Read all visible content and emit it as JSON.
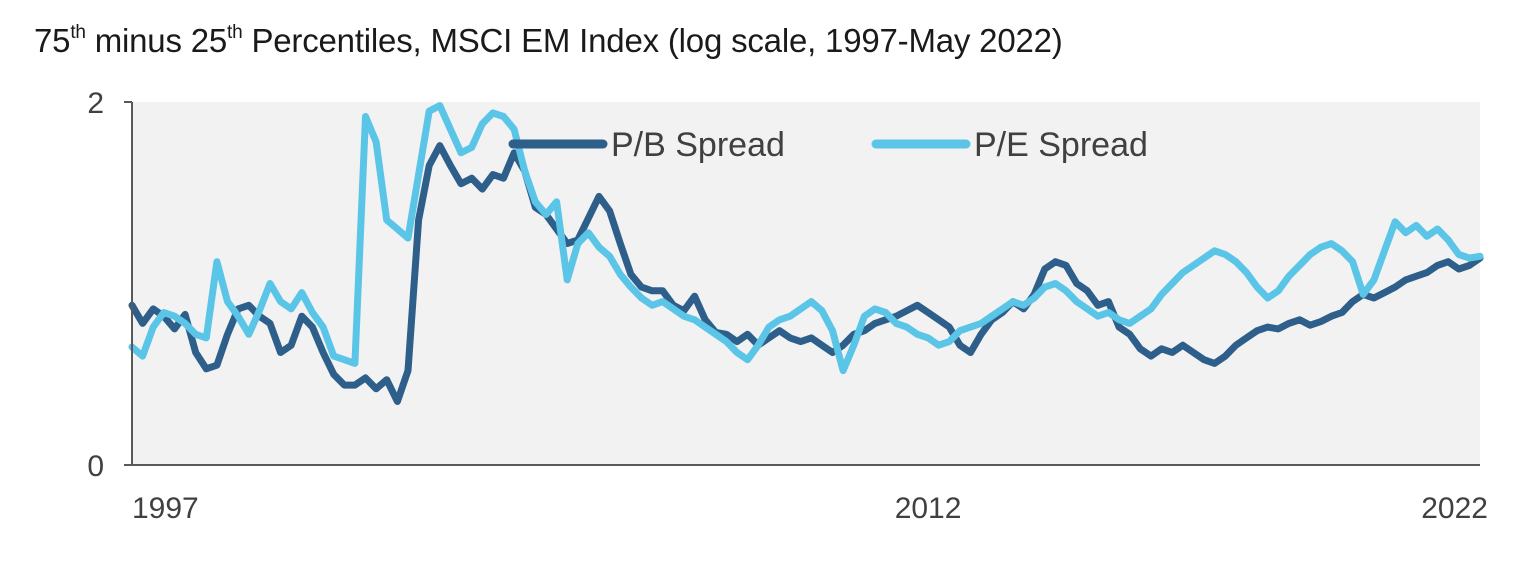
{
  "title": {
    "part1": "75",
    "sup1": "th",
    "part2": " minus 25",
    "sup2": "th",
    "part3": " Percentiles, MSCI EM Index (log scale, 1997-May 2022)"
  },
  "chart_data": {
    "type": "line",
    "title": "75th minus 25th Percentiles, MSCI EM Index (log scale, 1997-May 2022)",
    "xlabel": "",
    "ylabel": "",
    "xlim": [
      1997.0,
      2022.4
    ],
    "ylim": [
      0,
      2
    ],
    "x_ticks": [
      {
        "value": 1997,
        "label": "1997"
      },
      {
        "value": 2012,
        "label": "2012"
      },
      {
        "value": 2022.4,
        "label": "2022"
      }
    ],
    "y_ticks": [
      {
        "value": 0,
        "label": "0"
      },
      {
        "value": 2,
        "label": "2"
      }
    ],
    "grid": false,
    "legend_position": "top-center",
    "series": [
      {
        "name": "P/B Spread",
        "color": "#2e5f8a",
        "points": [
          [
            1997.0,
            0.88
          ],
          [
            1997.2,
            0.78
          ],
          [
            1997.4,
            0.86
          ],
          [
            1997.6,
            0.82
          ],
          [
            1997.8,
            0.75
          ],
          [
            1998.0,
            0.83
          ],
          [
            1998.2,
            0.62
          ],
          [
            1998.4,
            0.53
          ],
          [
            1998.6,
            0.55
          ],
          [
            1998.8,
            0.72
          ],
          [
            1999.0,
            0.86
          ],
          [
            1999.2,
            0.88
          ],
          [
            1999.4,
            0.82
          ],
          [
            1999.6,
            0.78
          ],
          [
            1999.8,
            0.62
          ],
          [
            2000.0,
            0.66
          ],
          [
            2000.2,
            0.82
          ],
          [
            2000.4,
            0.76
          ],
          [
            2000.6,
            0.62
          ],
          [
            2000.8,
            0.5
          ],
          [
            2001.0,
            0.44
          ],
          [
            2001.2,
            0.44
          ],
          [
            2001.4,
            0.48
          ],
          [
            2001.6,
            0.42
          ],
          [
            2001.8,
            0.47
          ],
          [
            2002.0,
            0.35
          ],
          [
            2002.2,
            0.52
          ],
          [
            2002.4,
            1.35
          ],
          [
            2002.6,
            1.65
          ],
          [
            2002.8,
            1.76
          ],
          [
            2003.0,
            1.65
          ],
          [
            2003.2,
            1.55
          ],
          [
            2003.4,
            1.58
          ],
          [
            2003.6,
            1.52
          ],
          [
            2003.8,
            1.6
          ],
          [
            2004.0,
            1.58
          ],
          [
            2004.2,
            1.72
          ],
          [
            2004.4,
            1.62
          ],
          [
            2004.6,
            1.42
          ],
          [
            2004.8,
            1.38
          ],
          [
            2005.0,
            1.3
          ],
          [
            2005.2,
            1.22
          ],
          [
            2005.4,
            1.24
          ],
          [
            2005.6,
            1.36
          ],
          [
            2005.8,
            1.48
          ],
          [
            2006.0,
            1.4
          ],
          [
            2006.2,
            1.22
          ],
          [
            2006.4,
            1.05
          ],
          [
            2006.6,
            0.98
          ],
          [
            2006.8,
            0.96
          ],
          [
            2007.0,
            0.96
          ],
          [
            2007.2,
            0.88
          ],
          [
            2007.4,
            0.85
          ],
          [
            2007.6,
            0.93
          ],
          [
            2007.8,
            0.8
          ],
          [
            2008.0,
            0.73
          ],
          [
            2008.2,
            0.72
          ],
          [
            2008.4,
            0.68
          ],
          [
            2008.6,
            0.72
          ],
          [
            2008.8,
            0.66
          ],
          [
            2009.0,
            0.7
          ],
          [
            2009.2,
            0.74
          ],
          [
            2009.4,
            0.7
          ],
          [
            2009.6,
            0.68
          ],
          [
            2009.8,
            0.7
          ],
          [
            2010.0,
            0.66
          ],
          [
            2010.2,
            0.62
          ],
          [
            2010.4,
            0.66
          ],
          [
            2010.6,
            0.72
          ],
          [
            2010.8,
            0.74
          ],
          [
            2011.0,
            0.78
          ],
          [
            2011.2,
            0.8
          ],
          [
            2011.4,
            0.82
          ],
          [
            2011.6,
            0.85
          ],
          [
            2011.8,
            0.88
          ],
          [
            2012.0,
            0.84
          ],
          [
            2012.2,
            0.8
          ],
          [
            2012.4,
            0.76
          ],
          [
            2012.6,
            0.66
          ],
          [
            2012.8,
            0.62
          ],
          [
            2013.0,
            0.72
          ],
          [
            2013.2,
            0.8
          ],
          [
            2013.4,
            0.84
          ],
          [
            2013.6,
            0.9
          ],
          [
            2013.8,
            0.86
          ],
          [
            2014.0,
            0.94
          ],
          [
            2014.2,
            1.08
          ],
          [
            2014.4,
            1.12
          ],
          [
            2014.6,
            1.1
          ],
          [
            2014.8,
            1.0
          ],
          [
            2015.0,
            0.96
          ],
          [
            2015.2,
            0.88
          ],
          [
            2015.4,
            0.9
          ],
          [
            2015.6,
            0.76
          ],
          [
            2015.8,
            0.72
          ],
          [
            2016.0,
            0.64
          ],
          [
            2016.2,
            0.6
          ],
          [
            2016.4,
            0.64
          ],
          [
            2016.6,
            0.62
          ],
          [
            2016.8,
            0.66
          ],
          [
            2017.0,
            0.62
          ],
          [
            2017.2,
            0.58
          ],
          [
            2017.4,
            0.56
          ],
          [
            2017.6,
            0.6
          ],
          [
            2017.8,
            0.66
          ],
          [
            2018.0,
            0.7
          ],
          [
            2018.2,
            0.74
          ],
          [
            2018.4,
            0.76
          ],
          [
            2018.6,
            0.75
          ],
          [
            2018.8,
            0.78
          ],
          [
            2019.0,
            0.8
          ],
          [
            2019.2,
            0.77
          ],
          [
            2019.4,
            0.79
          ],
          [
            2019.6,
            0.82
          ],
          [
            2019.8,
            0.84
          ],
          [
            2020.0,
            0.9
          ],
          [
            2020.2,
            0.94
          ],
          [
            2020.4,
            0.92
          ],
          [
            2020.6,
            0.95
          ],
          [
            2020.8,
            0.98
          ],
          [
            2021.0,
            1.02
          ],
          [
            2021.2,
            1.04
          ],
          [
            2021.4,
            1.06
          ],
          [
            2021.6,
            1.1
          ],
          [
            2021.8,
            1.12
          ],
          [
            2022.0,
            1.08
          ],
          [
            2022.2,
            1.1
          ],
          [
            2022.4,
            1.14
          ]
        ]
      },
      {
        "name": "P/E Spread",
        "color": "#5bc5e8",
        "points": [
          [
            1997.0,
            0.65
          ],
          [
            1997.2,
            0.6
          ],
          [
            1997.4,
            0.76
          ],
          [
            1997.6,
            0.84
          ],
          [
            1997.8,
            0.82
          ],
          [
            1998.0,
            0.78
          ],
          [
            1998.2,
            0.72
          ],
          [
            1998.4,
            0.7
          ],
          [
            1998.6,
            1.12
          ],
          [
            1998.8,
            0.9
          ],
          [
            1999.0,
            0.82
          ],
          [
            1999.2,
            0.72
          ],
          [
            1999.4,
            0.85
          ],
          [
            1999.6,
            1.0
          ],
          [
            1999.8,
            0.9
          ],
          [
            2000.0,
            0.86
          ],
          [
            2000.2,
            0.95
          ],
          [
            2000.4,
            0.84
          ],
          [
            2000.6,
            0.76
          ],
          [
            2000.8,
            0.6
          ],
          [
            2001.0,
            0.58
          ],
          [
            2001.2,
            0.56
          ],
          [
            2001.4,
            1.92
          ],
          [
            2001.6,
            1.78
          ],
          [
            2001.8,
            1.35
          ],
          [
            2002.0,
            1.3
          ],
          [
            2002.2,
            1.25
          ],
          [
            2002.4,
            1.6
          ],
          [
            2002.6,
            1.95
          ],
          [
            2002.8,
            1.98
          ],
          [
            2003.0,
            1.85
          ],
          [
            2003.2,
            1.72
          ],
          [
            2003.4,
            1.75
          ],
          [
            2003.6,
            1.88
          ],
          [
            2003.8,
            1.94
          ],
          [
            2004.0,
            1.92
          ],
          [
            2004.2,
            1.85
          ],
          [
            2004.4,
            1.62
          ],
          [
            2004.6,
            1.45
          ],
          [
            2004.8,
            1.38
          ],
          [
            2005.0,
            1.45
          ],
          [
            2005.2,
            1.02
          ],
          [
            2005.4,
            1.22
          ],
          [
            2005.6,
            1.28
          ],
          [
            2005.8,
            1.2
          ],
          [
            2006.0,
            1.15
          ],
          [
            2006.2,
            1.05
          ],
          [
            2006.4,
            0.98
          ],
          [
            2006.6,
            0.92
          ],
          [
            2006.8,
            0.88
          ],
          [
            2007.0,
            0.9
          ],
          [
            2007.2,
            0.86
          ],
          [
            2007.4,
            0.82
          ],
          [
            2007.6,
            0.8
          ],
          [
            2007.8,
            0.76
          ],
          [
            2008.0,
            0.72
          ],
          [
            2008.2,
            0.68
          ],
          [
            2008.4,
            0.62
          ],
          [
            2008.6,
            0.58
          ],
          [
            2008.8,
            0.66
          ],
          [
            2009.0,
            0.76
          ],
          [
            2009.2,
            0.8
          ],
          [
            2009.4,
            0.82
          ],
          [
            2009.6,
            0.86
          ],
          [
            2009.8,
            0.9
          ],
          [
            2010.0,
            0.85
          ],
          [
            2010.2,
            0.74
          ],
          [
            2010.4,
            0.52
          ],
          [
            2010.6,
            0.66
          ],
          [
            2010.8,
            0.82
          ],
          [
            2011.0,
            0.86
          ],
          [
            2011.2,
            0.84
          ],
          [
            2011.4,
            0.78
          ],
          [
            2011.6,
            0.76
          ],
          [
            2011.8,
            0.72
          ],
          [
            2012.0,
            0.7
          ],
          [
            2012.2,
            0.66
          ],
          [
            2012.4,
            0.68
          ],
          [
            2012.6,
            0.74
          ],
          [
            2012.8,
            0.76
          ],
          [
            2013.0,
            0.78
          ],
          [
            2013.2,
            0.82
          ],
          [
            2013.4,
            0.86
          ],
          [
            2013.6,
            0.9
          ],
          [
            2013.8,
            0.88
          ],
          [
            2014.0,
            0.92
          ],
          [
            2014.2,
            0.98
          ],
          [
            2014.4,
            1.0
          ],
          [
            2014.6,
            0.96
          ],
          [
            2014.8,
            0.9
          ],
          [
            2015.0,
            0.86
          ],
          [
            2015.2,
            0.82
          ],
          [
            2015.4,
            0.84
          ],
          [
            2015.6,
            0.8
          ],
          [
            2015.8,
            0.78
          ],
          [
            2016.0,
            0.82
          ],
          [
            2016.2,
            0.86
          ],
          [
            2016.4,
            0.94
          ],
          [
            2016.6,
            1.0
          ],
          [
            2016.8,
            1.06
          ],
          [
            2017.0,
            1.1
          ],
          [
            2017.2,
            1.14
          ],
          [
            2017.4,
            1.18
          ],
          [
            2017.6,
            1.16
          ],
          [
            2017.8,
            1.12
          ],
          [
            2018.0,
            1.06
          ],
          [
            2018.2,
            0.98
          ],
          [
            2018.4,
            0.92
          ],
          [
            2018.6,
            0.96
          ],
          [
            2018.8,
            1.04
          ],
          [
            2019.0,
            1.1
          ],
          [
            2019.2,
            1.16
          ],
          [
            2019.4,
            1.2
          ],
          [
            2019.6,
            1.22
          ],
          [
            2019.8,
            1.18
          ],
          [
            2020.0,
            1.12
          ],
          [
            2020.2,
            0.94
          ],
          [
            2020.4,
            1.02
          ],
          [
            2020.6,
            1.18
          ],
          [
            2020.8,
            1.34
          ],
          [
            2021.0,
            1.28
          ],
          [
            2021.2,
            1.32
          ],
          [
            2021.4,
            1.26
          ],
          [
            2021.6,
            1.3
          ],
          [
            2021.8,
            1.24
          ],
          [
            2022.0,
            1.16
          ],
          [
            2022.2,
            1.14
          ],
          [
            2022.4,
            1.15
          ]
        ]
      }
    ]
  }
}
